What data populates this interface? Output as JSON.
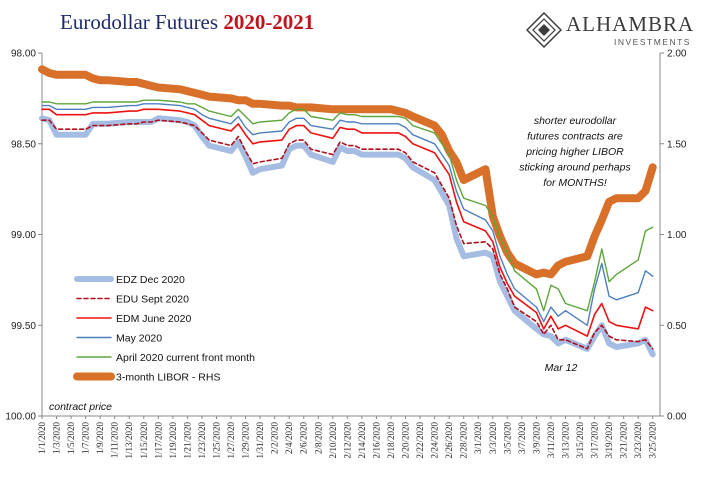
{
  "header": {
    "title_main": "Eurodollar Futures ",
    "title_years": "2020-2021",
    "logo_name": "ALHAMBRA",
    "logo_sub": "INVESTMENTS"
  },
  "colors": {
    "edz": "#a6bde3",
    "edu": "#b0101c",
    "edm": "#ee1111",
    "may": "#4d7fbf",
    "apr": "#5ea53a",
    "libor": "#d9702a"
  },
  "chart_data": {
    "type": "line",
    "x": [
      "1/1/2020",
      "1/2/2020",
      "1/3/2020",
      "1/6/2020",
      "1/7/2020",
      "1/8/2020",
      "1/9/2020",
      "1/10/2020",
      "1/13/2020",
      "1/14/2020",
      "1/15/2020",
      "1/16/2020",
      "1/17/2020",
      "1/20/2020",
      "1/21/2020",
      "1/22/2020",
      "1/23/2020",
      "1/24/2020",
      "1/27/2020",
      "1/28/2020",
      "1/29/2020",
      "1/30/2020",
      "1/31/2020",
      "2/3/2020",
      "2/4/2020",
      "2/5/2020",
      "2/6/2020",
      "2/7/2020",
      "2/10/2020",
      "2/11/2020",
      "2/12/2020",
      "2/13/2020",
      "2/14/2020",
      "2/17/2020",
      "2/18/2020",
      "2/19/2020",
      "2/20/2020",
      "2/21/2020",
      "2/24/2020",
      "2/25/2020",
      "2/26/2020",
      "2/27/2020",
      "2/28/2020",
      "3/2/2020",
      "3/3/2020",
      "3/4/2020",
      "3/5/2020",
      "3/6/2020",
      "3/9/2020",
      "3/10/2020",
      "3/11/2020",
      "3/12/2020",
      "3/13/2020",
      "3/16/2020",
      "3/17/2020",
      "3/18/2020",
      "3/19/2020",
      "3/20/2020",
      "3/23/2020",
      "3/24/2020",
      "3/25/2020"
    ],
    "x_tick_labels": [
      "1/1/2020",
      "1/3/2020",
      "1/5/2020",
      "1/7/2020",
      "1/9/2020",
      "1/11/2020",
      "1/13/2020",
      "1/15/2020",
      "1/17/2020",
      "1/19/2020",
      "1/21/2020",
      "1/23/2020",
      "1/25/2020",
      "1/27/2020",
      "1/29/2020",
      "1/31/2020",
      "2/2/2020",
      "2/4/2020",
      "2/6/2020",
      "2/8/2020",
      "2/10/2020",
      "2/12/2020",
      "2/14/2020",
      "2/16/2020",
      "2/18/2020",
      "2/20/2020",
      "2/22/2020",
      "2/24/2020",
      "2/26/2020",
      "2/28/2020",
      "3/1/2020",
      "3/3/2020",
      "3/5/2020",
      "3/7/2020",
      "3/9/2020",
      "3/11/2020",
      "3/13/2020",
      "3/15/2020",
      "3/17/2020",
      "3/19/2020",
      "3/21/2020",
      "3/23/2020",
      "3/25/2020"
    ],
    "x_range": [
      "1/1/2020",
      "3/26/2020"
    ],
    "y_left_ticks": [
      "98.00",
      "98.50",
      "99.00",
      "99.50",
      "100.00"
    ],
    "y_left_range": [
      98.0,
      100.0
    ],
    "y_left_inverted": true,
    "y_right_ticks": [
      "2.00",
      "1.50",
      "1.00",
      "0.50",
      "0.00"
    ],
    "y_right_range": [
      0.0,
      2.0
    ],
    "left_axis_note": "contract price",
    "series": [
      {
        "name": "EDZ Dec 2020",
        "key": "edz",
        "axis": "left",
        "width": 6,
        "values": [
          98.36,
          98.37,
          98.45,
          98.45,
          98.45,
          98.39,
          98.39,
          98.39,
          98.38,
          98.38,
          98.38,
          98.38,
          98.36,
          98.37,
          98.38,
          98.4,
          98.46,
          98.51,
          98.54,
          98.49,
          98.57,
          98.66,
          98.64,
          98.62,
          98.53,
          98.51,
          98.51,
          98.56,
          98.6,
          98.52,
          98.54,
          98.54,
          98.56,
          98.56,
          98.56,
          98.56,
          98.58,
          98.63,
          98.7,
          98.77,
          98.84,
          99.02,
          99.12,
          99.1,
          99.12,
          99.26,
          99.34,
          99.42,
          99.52,
          99.55,
          99.56,
          99.6,
          99.58,
          99.63,
          99.56,
          99.5,
          99.6,
          99.62,
          99.6,
          99.58,
          99.66
        ]
      },
      {
        "name": "EDU Sept 2020",
        "key": "edu",
        "axis": "left",
        "width": 1.6,
        "dash": "4,3",
        "values": [
          98.37,
          98.37,
          98.42,
          98.42,
          98.42,
          98.4,
          98.4,
          98.4,
          98.39,
          98.39,
          98.38,
          98.38,
          98.37,
          98.38,
          98.39,
          98.4,
          98.44,
          98.48,
          98.51,
          98.46,
          98.54,
          98.61,
          98.6,
          98.58,
          98.5,
          98.48,
          98.48,
          98.53,
          98.56,
          98.49,
          98.51,
          98.51,
          98.53,
          98.53,
          98.53,
          98.53,
          98.55,
          98.6,
          98.66,
          98.73,
          98.8,
          98.95,
          99.05,
          99.04,
          99.08,
          99.22,
          99.3,
          99.4,
          99.48,
          99.55,
          99.5,
          99.58,
          99.58,
          99.63,
          99.54,
          99.5,
          99.56,
          99.58,
          99.59,
          99.58,
          99.63
        ]
      },
      {
        "name": "EDM June 2020",
        "key": "edm",
        "axis": "left",
        "width": 1.6,
        "values": [
          98.31,
          98.31,
          98.34,
          98.34,
          98.34,
          98.33,
          98.33,
          98.33,
          98.32,
          98.32,
          98.31,
          98.31,
          98.31,
          98.32,
          98.33,
          98.34,
          98.37,
          98.4,
          98.43,
          98.39,
          98.45,
          98.5,
          98.49,
          98.48,
          98.42,
          98.4,
          98.4,
          98.44,
          98.47,
          98.41,
          98.42,
          98.42,
          98.44,
          98.44,
          98.44,
          98.44,
          98.46,
          98.5,
          98.55,
          98.61,
          98.67,
          98.82,
          98.93,
          98.98,
          99.04,
          99.18,
          99.27,
          99.34,
          99.43,
          99.52,
          99.45,
          99.52,
          99.5,
          99.56,
          99.44,
          99.38,
          99.48,
          99.5,
          99.52,
          99.4,
          99.42
        ]
      },
      {
        "name": "May 2020",
        "key": "may",
        "axis": "left",
        "width": 1.4,
        "values": [
          98.29,
          98.29,
          98.31,
          98.31,
          98.31,
          98.3,
          98.3,
          98.3,
          98.29,
          98.29,
          98.28,
          98.28,
          98.28,
          98.29,
          98.3,
          98.31,
          98.34,
          98.36,
          98.39,
          98.35,
          98.41,
          98.45,
          98.44,
          98.43,
          98.38,
          98.36,
          98.36,
          98.4,
          98.42,
          98.37,
          98.38,
          98.38,
          98.39,
          98.39,
          98.39,
          98.39,
          98.41,
          98.45,
          98.5,
          98.56,
          98.62,
          98.76,
          98.86,
          98.92,
          98.98,
          99.12,
          99.22,
          99.3,
          99.4,
          99.48,
          99.4,
          99.45,
          99.42,
          99.5,
          99.3,
          99.16,
          99.34,
          99.36,
          99.32,
          99.2,
          99.23
        ]
      },
      {
        "name": "April 2020 current front month",
        "key": "apr",
        "axis": "left",
        "width": 1.4,
        "values": [
          98.27,
          98.27,
          98.28,
          98.28,
          98.28,
          98.27,
          98.27,
          98.27,
          98.27,
          98.27,
          98.26,
          98.26,
          98.26,
          98.27,
          98.28,
          98.28,
          98.3,
          98.32,
          98.35,
          98.31,
          98.35,
          98.39,
          98.38,
          98.37,
          98.33,
          98.31,
          98.31,
          98.35,
          98.37,
          98.33,
          98.34,
          98.34,
          98.35,
          98.35,
          98.35,
          98.35,
          98.36,
          98.4,
          98.44,
          98.5,
          98.56,
          98.7,
          98.8,
          98.84,
          98.9,
          99.02,
          99.1,
          99.2,
          99.3,
          99.42,
          99.28,
          99.3,
          99.38,
          99.42,
          99.26,
          99.08,
          99.26,
          99.22,
          99.14,
          98.98,
          98.96
        ]
      },
      {
        "name": "3-month LIBOR - RHS",
        "key": "libor",
        "axis": "right",
        "width": 8,
        "values": [
          1.91,
          1.89,
          1.88,
          1.88,
          1.88,
          1.86,
          1.85,
          1.85,
          1.84,
          1.84,
          1.83,
          1.82,
          1.81,
          1.8,
          1.79,
          1.78,
          1.77,
          1.76,
          1.75,
          1.74,
          1.74,
          1.72,
          1.72,
          1.71,
          1.71,
          1.7,
          1.7,
          1.7,
          1.69,
          1.69,
          1.69,
          1.69,
          1.69,
          1.69,
          1.69,
          1.68,
          1.67,
          1.65,
          1.6,
          1.55,
          1.46,
          1.4,
          1.3,
          1.36,
          1.1,
          0.99,
          0.9,
          0.84,
          0.78,
          0.79,
          0.78,
          0.83,
          0.85,
          0.88,
          0.99,
          1.08,
          1.18,
          1.2,
          1.2,
          1.24,
          1.37
        ]
      }
    ],
    "annotations": [
      {
        "text": "shorter eurodollar",
        "group": "main"
      },
      {
        "text": "futures contracts are",
        "group": "main"
      },
      {
        "text": "pricing higher LIBOR",
        "group": "main"
      },
      {
        "text": "sticking around perhaps",
        "group": "main"
      },
      {
        "text": "for MONTHS!",
        "group": "main"
      },
      {
        "text": "Mar 12",
        "group": "date"
      }
    ],
    "grid": false,
    "legend_position": "bottom-left"
  }
}
